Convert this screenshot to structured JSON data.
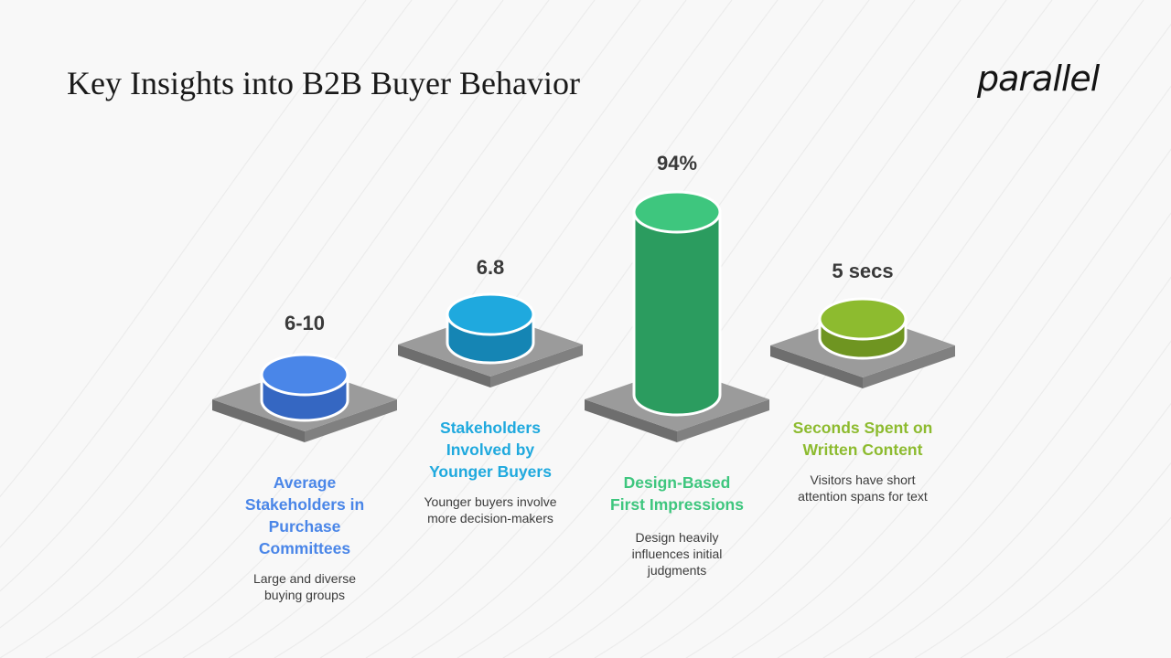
{
  "title": "Key Insights into B2B Buyer Behavior",
  "logo": "parallel",
  "items": [
    {
      "value": "6-10",
      "heading_lines": [
        "Average",
        "Stakeholders in",
        "Purchase",
        "Committees"
      ],
      "desc_lines": [
        "Large and diverse",
        "buying groups"
      ],
      "color": "#4a86e8",
      "color_dark": "#3567c2"
    },
    {
      "value": "6.8",
      "heading_lines": [
        "Stakeholders",
        "Involved by",
        "Younger Buyers"
      ],
      "desc_lines": [
        "Younger buyers involve",
        "more decision-makers"
      ],
      "color": "#1fa9de",
      "color_dark": "#1585b4"
    },
    {
      "value": "94%",
      "heading_lines": [
        "Design-Based",
        "First Impressions"
      ],
      "desc_lines": [
        "Design heavily",
        "influences initial",
        "judgments"
      ],
      "color": "#3ec67e",
      "color_dark": "#2b9c5f"
    },
    {
      "value": "5 secs",
      "heading_lines": [
        "Seconds Spent on",
        "Written Content"
      ],
      "desc_lines": [
        "Visitors have short",
        "attention spans for text"
      ],
      "color": "#8dbb2f",
      "color_dark": "#6f9521"
    }
  ],
  "colors": {
    "platform_top": "#9b9b9b",
    "platform_side": "#6e6e6e",
    "background": "#f8f8f8"
  }
}
